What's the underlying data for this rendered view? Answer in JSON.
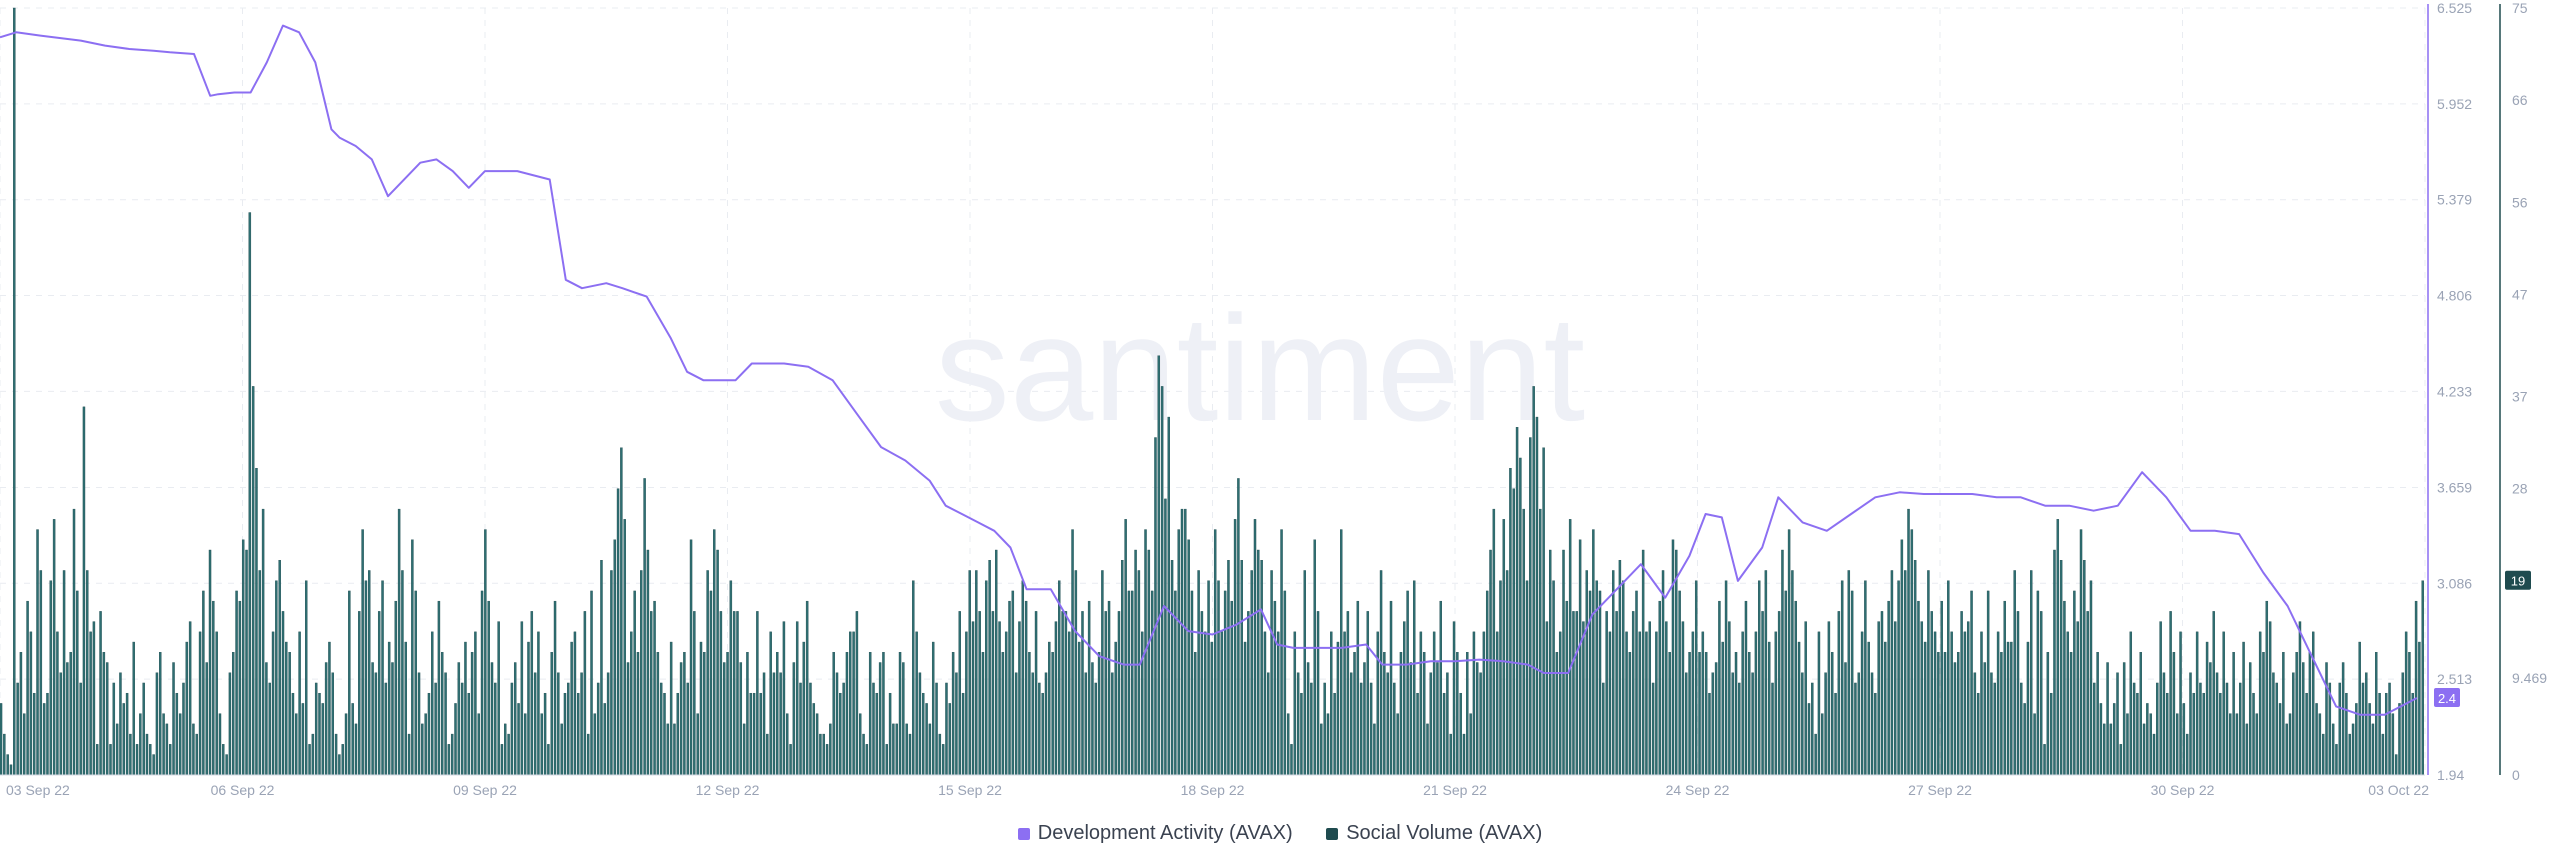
{
  "watermark": "santiment",
  "colors": {
    "dev": "#8c6ff2",
    "social": "#1f4b4f",
    "socialFill": "#2f6f72",
    "grid": "#e9ecf1",
    "axis": "#9aa3b5"
  },
  "legend": [
    {
      "label": "Development Activity (AVAX)",
      "color": "#8c6ff2"
    },
    {
      "label": "Social Volume (AVAX)",
      "color": "#1f4b4f"
    }
  ],
  "chart_data": {
    "type": "bar+line",
    "x_labels": [
      "03 Sep 22",
      "06 Sep 22",
      "09 Sep 22",
      "12 Sep 22",
      "15 Sep 22",
      "18 Sep 22",
      "21 Sep 22",
      "24 Sep 22",
      "27 Sep 22",
      "30 Sep 22",
      "03 Oct 22"
    ],
    "x_range_days": [
      0,
      30
    ],
    "left_axis": {
      "series": "Development Activity (AVAX)",
      "ticks": [
        "6.525",
        "5.952",
        "5.379",
        "4.806",
        "4.233",
        "3.659",
        "3.086",
        "2.513",
        "1.94"
      ],
      "ylim": [
        1.94,
        6.525
      ]
    },
    "right_axis": {
      "series": "Social Volume (AVAX)",
      "ticks": [
        "75",
        "66",
        "56",
        "47",
        "37",
        "28",
        "19",
        "9.469",
        "0"
      ],
      "ylim": [
        0,
        75
      ]
    },
    "current_values": {
      "dev": "2.4",
      "social": "19"
    },
    "series": [
      {
        "name": "Development Activity (AVAX)",
        "kind": "line",
        "days": [
          0,
          0.2,
          0.5,
          1.0,
          1.3,
          1.6,
          1.9,
          2.1,
          2.4,
          2.6,
          2.7,
          2.9,
          3.1,
          3.3,
          3.5,
          3.7,
          3.9,
          4.1,
          4.2,
          4.4,
          4.6,
          4.8,
          4.9,
          5.2,
          5.4,
          5.6,
          5.8,
          6.0,
          6.4,
          6.8,
          7.0,
          7.2,
          7.5,
          7.7,
          8.0,
          8.3,
          8.5,
          8.7,
          8.9,
          9.1,
          9.3,
          9.5,
          9.7,
          10.0,
          10.3,
          10.6,
          10.9,
          11.2,
          11.5,
          11.7,
          11.9,
          12.1,
          12.3,
          12.5,
          12.7,
          13.0,
          13.3,
          13.6,
          13.9,
          14.1,
          14.4,
          14.7,
          15.0,
          15.3,
          15.6,
          15.8,
          16.0,
          16.3,
          16.6,
          16.9,
          17.1,
          17.4,
          17.7,
          18.0,
          18.3,
          18.6,
          18.9,
          19.1,
          19.4,
          19.7,
          20.0,
          20.3,
          20.6,
          20.9,
          21.1,
          21.3,
          21.5,
          21.8,
          22.0,
          22.3,
          22.6,
          22.9,
          23.2,
          23.5,
          23.8,
          24.1,
          24.4,
          24.7,
          25.0,
          25.3,
          25.6,
          25.9,
          26.2,
          26.5,
          26.8,
          27.1,
          27.4,
          27.7,
          28.0,
          28.3,
          28.6,
          28.9,
          29.2,
          29.5,
          29.7,
          29.9
        ],
        "values": [
          6.35,
          6.38,
          6.36,
          6.33,
          6.3,
          6.28,
          6.27,
          6.26,
          6.25,
          6.0,
          6.01,
          6.02,
          6.02,
          6.2,
          6.42,
          6.38,
          6.2,
          5.8,
          5.75,
          5.7,
          5.62,
          5.4,
          5.45,
          5.6,
          5.62,
          5.55,
          5.45,
          5.55,
          5.55,
          5.5,
          4.9,
          4.85,
          4.88,
          4.85,
          4.8,
          4.55,
          4.35,
          4.3,
          4.3,
          4.3,
          4.4,
          4.4,
          4.4,
          4.38,
          4.3,
          4.1,
          3.9,
          3.82,
          3.7,
          3.55,
          3.5,
          3.45,
          3.4,
          3.3,
          3.05,
          3.05,
          2.8,
          2.65,
          2.6,
          2.6,
          2.95,
          2.8,
          2.78,
          2.84,
          2.93,
          2.72,
          2.7,
          2.7,
          2.7,
          2.72,
          2.6,
          2.6,
          2.62,
          2.62,
          2.63,
          2.62,
          2.6,
          2.55,
          2.55,
          2.9,
          3.05,
          3.2,
          3.0,
          3.25,
          3.5,
          3.48,
          3.1,
          3.3,
          3.6,
          3.45,
          3.4,
          3.5,
          3.6,
          3.63,
          3.62,
          3.62,
          3.62,
          3.6,
          3.6,
          3.55,
          3.55,
          3.52,
          3.55,
          3.75,
          3.6,
          3.4,
          3.4,
          3.38,
          3.15,
          2.95,
          2.65,
          2.35,
          2.3,
          2.3,
          2.35,
          2.4
        ]
      },
      {
        "name": "Social Volume (AVAX)",
        "kind": "bar",
        "days_range": [
          0,
          30
        ],
        "values": [
          7,
          4,
          2,
          1,
          75,
          9,
          12,
          6,
          17,
          14,
          8,
          24,
          20,
          7,
          8,
          19,
          25,
          14,
          10,
          20,
          11,
          12,
          26,
          18,
          9,
          36,
          20,
          14,
          15,
          3,
          16,
          12,
          11,
          3,
          9,
          5,
          10,
          7,
          8,
          4,
          13,
          3,
          6,
          9,
          4,
          3,
          2,
          10,
          12,
          6,
          5,
          3,
          11,
          8,
          6,
          9,
          13,
          15,
          5,
          4,
          14,
          18,
          11,
          22,
          17,
          14,
          6,
          3,
          2,
          10,
          12,
          18,
          17,
          23,
          22,
          55,
          38,
          30,
          20,
          26,
          11,
          9,
          14,
          19,
          21,
          16,
          13,
          12,
          8,
          6,
          14,
          7,
          19,
          3,
          4,
          9,
          8,
          7,
          11,
          13,
          10,
          4,
          2,
          3,
          6,
          18,
          7,
          5,
          16,
          24,
          19,
          20,
          11,
          10,
          16,
          19,
          9,
          13,
          11,
          17,
          26,
          20,
          13,
          4,
          23,
          18,
          10,
          5,
          6,
          8,
          14,
          9,
          17,
          12,
          10,
          3,
          4,
          7,
          11,
          9,
          13,
          8,
          12,
          14,
          6,
          18,
          24,
          17,
          11,
          9,
          15,
          3,
          5,
          4,
          9,
          11,
          7,
          15,
          6,
          13,
          16,
          10,
          14,
          6,
          8,
          3,
          12,
          17,
          10,
          5,
          8,
          9,
          13,
          14,
          8,
          10,
          16,
          4,
          18,
          6,
          9,
          21,
          7,
          10,
          20,
          23,
          28,
          32,
          25,
          11,
          14,
          18,
          12,
          20,
          29,
          22,
          16,
          17,
          12,
          9,
          8,
          5,
          13,
          5,
          8,
          11,
          12,
          9,
          23,
          16,
          6,
          13,
          12,
          20,
          18,
          24,
          22,
          16,
          11,
          12,
          19,
          16,
          16,
          11,
          5,
          12,
          8,
          8,
          16,
          8,
          10,
          4,
          14,
          10,
          12,
          10,
          15,
          6,
          3,
          11,
          15,
          9,
          13,
          17,
          9,
          7,
          6,
          4,
          4,
          3,
          5,
          12,
          10,
          8,
          9,
          12,
          14,
          14,
          16,
          6,
          4,
          3,
          12,
          9,
          8,
          11,
          12,
          3,
          8,
          5,
          5,
          12,
          11,
          5,
          4,
          19,
          14,
          10,
          8,
          7,
          5,
          13,
          9,
          4,
          3,
          9,
          7,
          12,
          10,
          16,
          8,
          14,
          20,
          15,
          20,
          16,
          12,
          19,
          21,
          16,
          22,
          15,
          12,
          14,
          17,
          18,
          10,
          15,
          19,
          17,
          12,
          10,
          16,
          9,
          8,
          10,
          13,
          12,
          15,
          19,
          16,
          16,
          14,
          24,
          20,
          13,
          16,
          10,
          17,
          11,
          9,
          12,
          20,
          16,
          17,
          10,
          13,
          16,
          21,
          25,
          18,
          18,
          22,
          20,
          14,
          24,
          22,
          18,
          33,
          41,
          38,
          27,
          35,
          21,
          18,
          24,
          26,
          26,
          23,
          18,
          12,
          20,
          16,
          14,
          19,
          13,
          24,
          19,
          14,
          18,
          21,
          17,
          25,
          29,
          21,
          13,
          16,
          20,
          25,
          22,
          21,
          14,
          10,
          20,
          17,
          14,
          24,
          18,
          6,
          3,
          14,
          10,
          8,
          20,
          11,
          9,
          23,
          16,
          5,
          9,
          6,
          14,
          8,
          13,
          24,
          14,
          16,
          10,
          12,
          17,
          9,
          11,
          16,
          9,
          5,
          14,
          20,
          12,
          10,
          17,
          9,
          6,
          12,
          15,
          18,
          11,
          19,
          8,
          14,
          12,
          5,
          10,
          14,
          11,
          17,
          8,
          10,
          4,
          15,
          12,
          8,
          4,
          12,
          6,
          14,
          11,
          10,
          14,
          18,
          22,
          26,
          14,
          19,
          25,
          20,
          30,
          28,
          34,
          31,
          26,
          19,
          33,
          38,
          35,
          26,
          32,
          15,
          22,
          19,
          12,
          14,
          22,
          17,
          25,
          16,
          16,
          23,
          15,
          20,
          18,
          24,
          19,
          18,
          9,
          16,
          14,
          20,
          16,
          21,
          19,
          14,
          12,
          16,
          18,
          14,
          22,
          14,
          15,
          9,
          14,
          17,
          20,
          15,
          12,
          23,
          22,
          18,
          15,
          10,
          12,
          14,
          19,
          12,
          14,
          12,
          8,
          10,
          11,
          17,
          13,
          19,
          15,
          10,
          12,
          9,
          14,
          17,
          12,
          10,
          14,
          19,
          16,
          20,
          13,
          9,
          14,
          16,
          22,
          18,
          24,
          20,
          17,
          13,
          10,
          15,
          7,
          9,
          4,
          14,
          6,
          10,
          15,
          12,
          8,
          16,
          19,
          11,
          20,
          18,
          9,
          10,
          14,
          19,
          13,
          10,
          8,
          15,
          16,
          13,
          17,
          20,
          15,
          19,
          23,
          20,
          26,
          24,
          21,
          17,
          15,
          13,
          20,
          16,
          14,
          12,
          17,
          12,
          19,
          14,
          11,
          12,
          16,
          14,
          15,
          18,
          10,
          8,
          14,
          11,
          18,
          10,
          9,
          14,
          12,
          17,
          13,
          13,
          20,
          16,
          9,
          7,
          13,
          20,
          6,
          18,
          16,
          3,
          12,
          8,
          22,
          25,
          21,
          17,
          14,
          12,
          18,
          15,
          24,
          21,
          16,
          19,
          9,
          12,
          7,
          5,
          11,
          5,
          7,
          10,
          3,
          11,
          6,
          14,
          9,
          8,
          12,
          5,
          7,
          6,
          4,
          9,
          15,
          10,
          8,
          16,
          12,
          6,
          14,
          7,
          4,
          10,
          8,
          14,
          9,
          8,
          13,
          11,
          16,
          10,
          8,
          14,
          9,
          6,
          12,
          6,
          9,
          13,
          5,
          11,
          8,
          6,
          14,
          12,
          17,
          15,
          10,
          9,
          7,
          12,
          5,
          6,
          10,
          12,
          15,
          11,
          8,
          12,
          14,
          7,
          6,
          4,
          11,
          9,
          5,
          3,
          9,
          11,
          8,
          4,
          5,
          7,
          13,
          9,
          10,
          7,
          5,
          12,
          8,
          4,
          8,
          9,
          6,
          2,
          7,
          10,
          14,
          12,
          8,
          17,
          13,
          19
        ]
      }
    ]
  }
}
